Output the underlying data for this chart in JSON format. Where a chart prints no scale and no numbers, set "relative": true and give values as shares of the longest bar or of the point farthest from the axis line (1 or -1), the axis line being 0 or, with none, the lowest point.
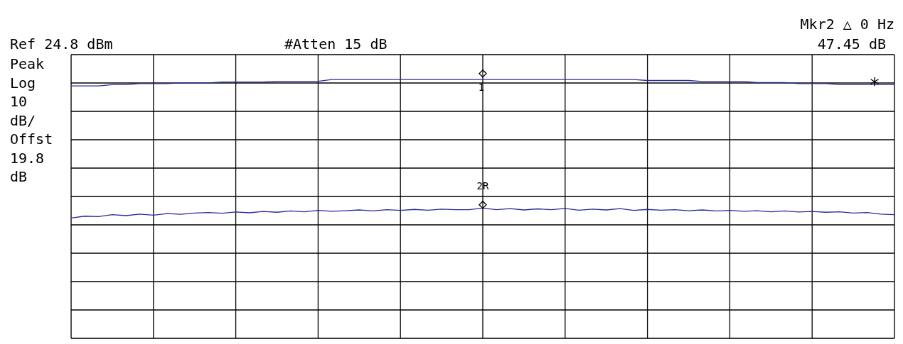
{
  "chart_data": {
    "type": "line",
    "relative": true,
    "grid": true,
    "tick_labels": false,
    "categories": [
      null,
      null,
      null,
      null,
      null,
      null,
      null,
      null,
      null,
      null,
      null,
      null,
      null,
      null,
      null,
      null,
      null,
      null,
      null,
      null,
      null,
      null,
      null,
      null,
      null,
      null,
      null,
      null,
      null,
      null,
      null,
      null,
      null,
      null,
      null,
      null,
      null,
      null,
      null,
      null,
      null,
      null,
      null,
      null,
      null,
      null,
      null,
      null,
      null,
      null,
      null,
      null,
      null,
      null,
      null,
      null,
      null,
      null,
      null,
      null,
      null
    ],
    "series": [
      {
        "color": "#2a2a9a",
        "values": [
          0.975,
          0.975,
          0.975,
          0.98,
          0.98,
          0.984,
          0.984,
          0.984,
          0.987,
          0.987,
          0.987,
          0.99,
          0.99,
          0.99,
          0.99,
          0.993,
          0.993,
          0.993,
          0.993,
          1.0,
          1.0,
          1.0,
          1.0,
          1.0,
          1.0,
          1.0,
          1.0,
          1.0,
          1.0,
          1.0,
          1.0,
          1.0,
          1.0,
          1.0,
          1.0,
          1.0,
          1.0,
          1.0,
          1.0,
          1.0,
          1.0,
          1.0,
          0.996,
          0.996,
          0.996,
          0.996,
          0.992,
          0.992,
          0.992,
          0.992,
          0.988,
          0.988,
          0.988,
          0.984,
          0.984,
          0.984,
          0.98,
          0.98,
          0.98,
          0.98,
          0.98
        ]
      },
      {
        "color": "#2a2a9a",
        "values": [
          0.465,
          0.472,
          0.47,
          0.478,
          0.474,
          0.48,
          0.476,
          0.482,
          0.479,
          0.484,
          0.486,
          0.483,
          0.488,
          0.485,
          0.49,
          0.487,
          0.492,
          0.489,
          0.494,
          0.491,
          0.493,
          0.496,
          0.492,
          0.497,
          0.494,
          0.498,
          0.495,
          0.499,
          0.497,
          0.497,
          0.503,
          0.497,
          0.501,
          0.496,
          0.5,
          0.497,
          0.502,
          0.495,
          0.499,
          0.496,
          0.501,
          0.494,
          0.498,
          0.495,
          0.497,
          0.493,
          0.496,
          0.492,
          0.494,
          0.491,
          0.493,
          0.489,
          0.492,
          0.488,
          0.49,
          0.487,
          0.489,
          0.484,
          0.486,
          0.48,
          0.478
        ]
      }
    ],
    "annotations": [
      "Ref 24.8 dBm",
      "#Atten 15 dB",
      "Mkr2 △  0 Hz",
      "47.45 dB",
      "Peak",
      "Log",
      "10",
      "dB/",
      "Offst",
      "19.8",
      "dB",
      "◇",
      "1",
      "2R",
      "◇",
      "*"
    ]
  }
}
